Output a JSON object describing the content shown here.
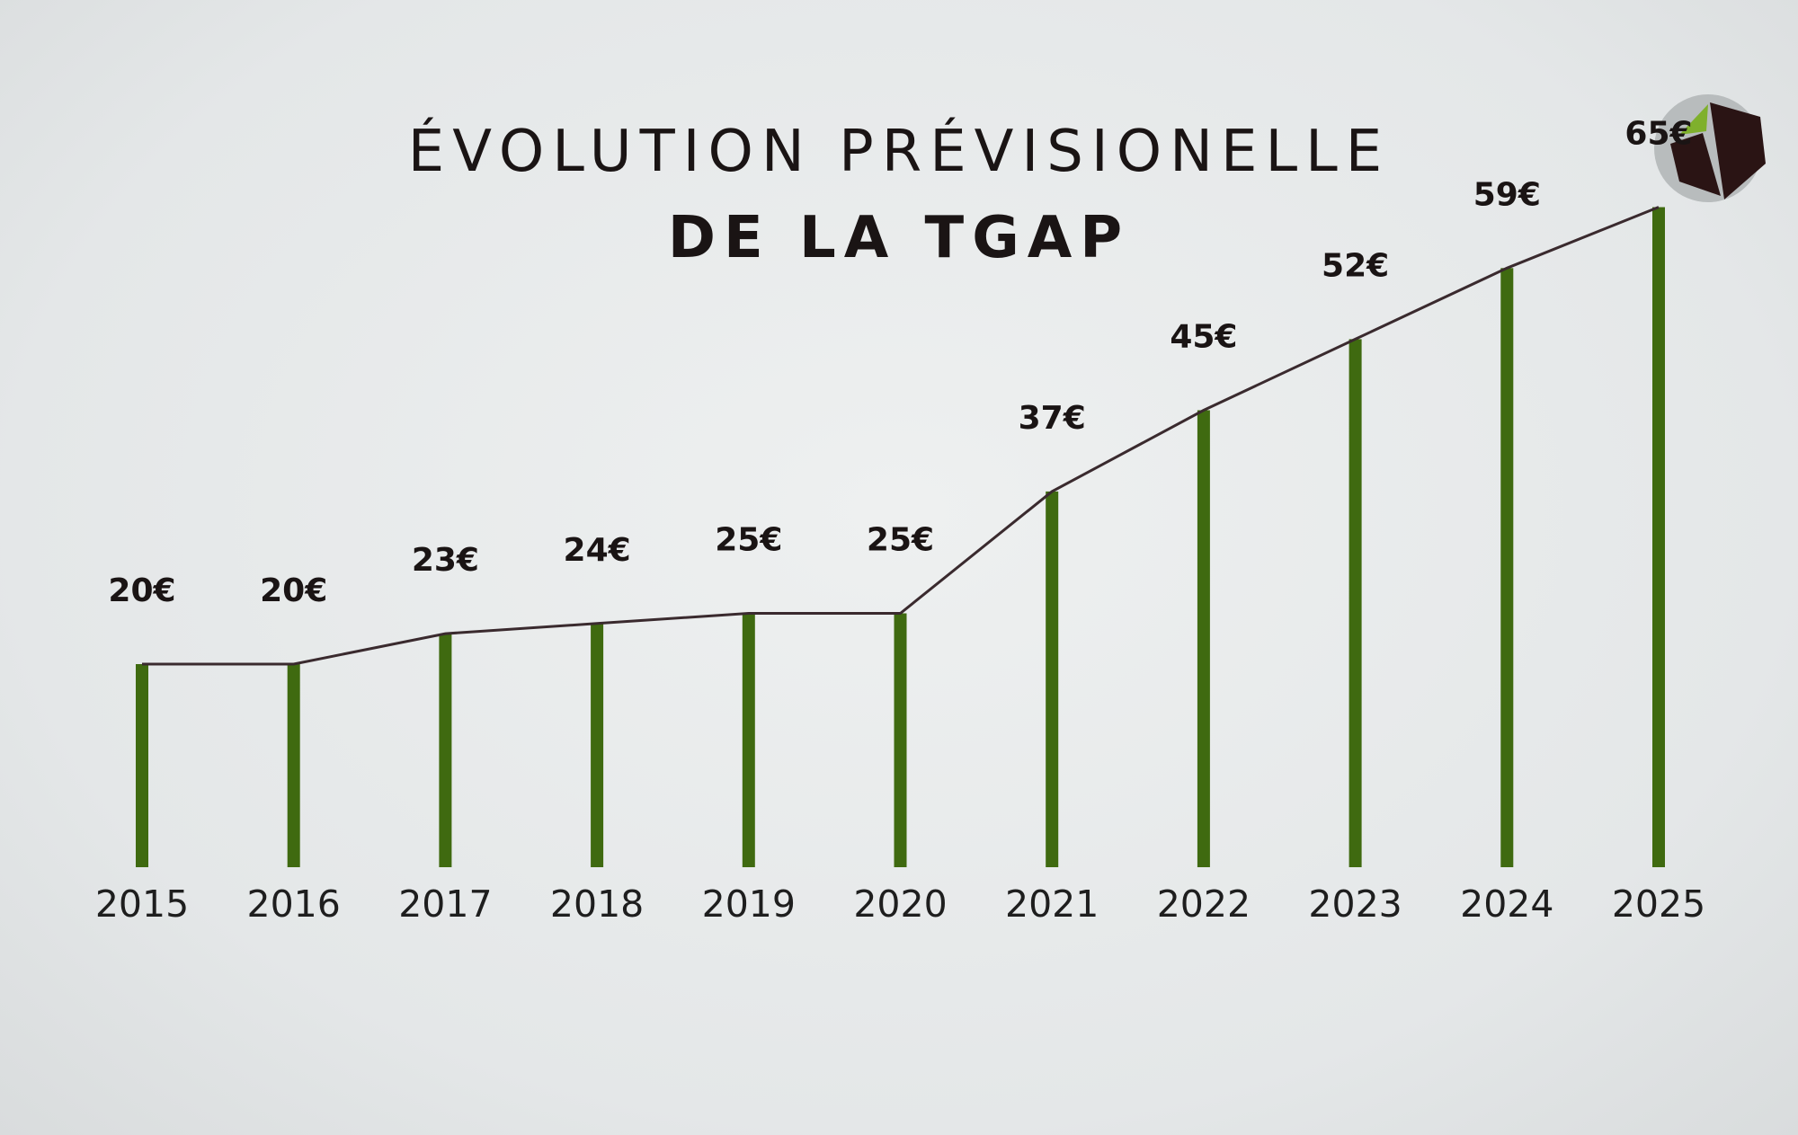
{
  "title": {
    "line1": "ÉVOLUTION PRÉVISIONELLE",
    "line2": "DE LA TGAP"
  },
  "logo": {
    "icon": "company-logo-icon",
    "colors": [
      "#2a1414",
      "#7fb02c",
      "#b8bcbd"
    ]
  },
  "chart_data": {
    "type": "bar",
    "categories": [
      "2015",
      "2016",
      "2017",
      "2018",
      "2019",
      "2020",
      "2021",
      "2022",
      "2023",
      "2024",
      "2025"
    ],
    "values": [
      20,
      20,
      23,
      24,
      25,
      25,
      37,
      45,
      52,
      59,
      65
    ],
    "value_labels": [
      "20€",
      "20€",
      "23€",
      "24€",
      "25€",
      "25€",
      "37€",
      "45€",
      "52€",
      "59€",
      "65€"
    ],
    "title": "ÉVOLUTION PRÉVISIONELLE DE LA TGAP",
    "xlabel": "",
    "ylabel": "",
    "unit": "€",
    "grid": false,
    "legend": "none",
    "bar_color": "#3f6a10",
    "line_color": "#3a2a2e"
  }
}
